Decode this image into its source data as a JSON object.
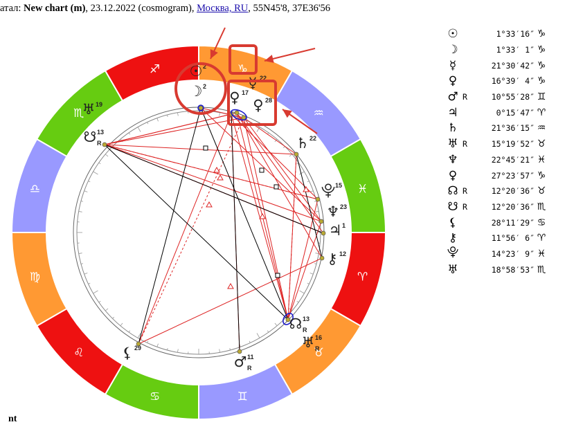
{
  "header": {
    "prefix": "атал: ",
    "chart_name": "New chart (m)",
    "details": ", 23.12.2022 (cosmogram), ",
    "place_link": "Москва, RU",
    "coords": ", 55N45'8, 37E36'56"
  },
  "footer": {
    "label": "nt"
  },
  "colors": {
    "fire": "#ee1111",
    "earth": "#ff9933",
    "air": "#9999ff",
    "water": "#66cc11",
    "aspect_red": "#dd2222",
    "aspect_black": "#000000",
    "highlight": "#d83a30",
    "marker_blue": "#1a1acc"
  },
  "zodiac": [
    {
      "glyph": "♈"
    },
    {
      "glyph": "♉"
    },
    {
      "glyph": "♊"
    },
    {
      "glyph": "♋"
    },
    {
      "glyph": "♌"
    },
    {
      "glyph": "♍"
    },
    {
      "glyph": "♎"
    },
    {
      "glyph": "♏"
    },
    {
      "glyph": "♐"
    },
    {
      "glyph": "♑"
    },
    {
      "glyph": "♒"
    },
    {
      "glyph": "♓"
    }
  ],
  "wheel_planets": [
    {
      "name": "sun",
      "glyph": "☉",
      "deg": "2"
    },
    {
      "name": "moon",
      "glyph": "☽",
      "deg": "2"
    },
    {
      "name": "mercury",
      "glyph": "☿",
      "deg": "22"
    },
    {
      "name": "venus",
      "glyph": "♀",
      "deg": "17"
    },
    {
      "name": "pluto-chart",
      "glyph": "♀",
      "deg": "28"
    },
    {
      "name": "saturn",
      "glyph": "♄",
      "deg": "22"
    },
    {
      "name": "proserpina",
      "glyph": "⯓",
      "deg": "15"
    },
    {
      "name": "neptune",
      "glyph": "♆",
      "deg": "23"
    },
    {
      "name": "jupiter",
      "glyph": "♃",
      "deg": "1"
    },
    {
      "name": "chiron",
      "glyph": "⚷",
      "deg": "12"
    },
    {
      "name": "north-node",
      "glyph": "☊",
      "deg": "13",
      "retro": "R"
    },
    {
      "name": "uranus",
      "glyph": "♅",
      "deg": "16",
      "retro": "R"
    },
    {
      "name": "mars",
      "glyph": "♂",
      "deg": "11",
      "retro": "R"
    },
    {
      "name": "lilith",
      "glyph": "⚸",
      "deg": "29"
    },
    {
      "name": "south-node",
      "glyph": "☋",
      "deg": "13",
      "retro": "R"
    },
    {
      "name": "transpluto",
      "glyph": "♅",
      "deg": "19"
    }
  ],
  "positions": [
    {
      "glyph": "☉",
      "retro": "",
      "pos": "1°33′16″",
      "sign": "♑"
    },
    {
      "glyph": "☽",
      "retro": "",
      "pos": "1°33′ 1″",
      "sign": "♑"
    },
    {
      "glyph": "☿",
      "retro": "",
      "pos": "21°30′42″",
      "sign": "♑"
    },
    {
      "glyph": "♀",
      "retro": "",
      "pos": "16°39′ 4″",
      "sign": "♑"
    },
    {
      "glyph": "♂",
      "retro": "R",
      "pos": "10°55′28″",
      "sign": "♊"
    },
    {
      "glyph": "♃",
      "retro": "",
      "pos": "0°15′47″",
      "sign": "♈"
    },
    {
      "glyph": "♄",
      "retro": "",
      "pos": "21°36′15″",
      "sign": "♒"
    },
    {
      "glyph": "♅",
      "retro": "R",
      "pos": "15°19′52″",
      "sign": "♉"
    },
    {
      "glyph": "♆",
      "retro": "",
      "pos": "22°45′21″",
      "sign": "♓"
    },
    {
      "glyph": "♀",
      "retro": "",
      "pos": "27°23′57″",
      "sign": "♑"
    },
    {
      "glyph": "☊",
      "retro": "R",
      "pos": "12°20′36″",
      "sign": "♉"
    },
    {
      "glyph": "☋",
      "retro": "R",
      "pos": "12°20′36″",
      "sign": "♏"
    },
    {
      "glyph": "⚸",
      "retro": "",
      "pos": "28°11′29″",
      "sign": "♋"
    },
    {
      "glyph": "⚷",
      "retro": "",
      "pos": "11°56′ 6″",
      "sign": "♈"
    },
    {
      "glyph": "⯓",
      "retro": "",
      "pos": "14°23′ 9″",
      "sign": "♓"
    },
    {
      "glyph": "♅",
      "retro": "",
      "pos": "18°58′53″",
      "sign": "♏"
    }
  ]
}
